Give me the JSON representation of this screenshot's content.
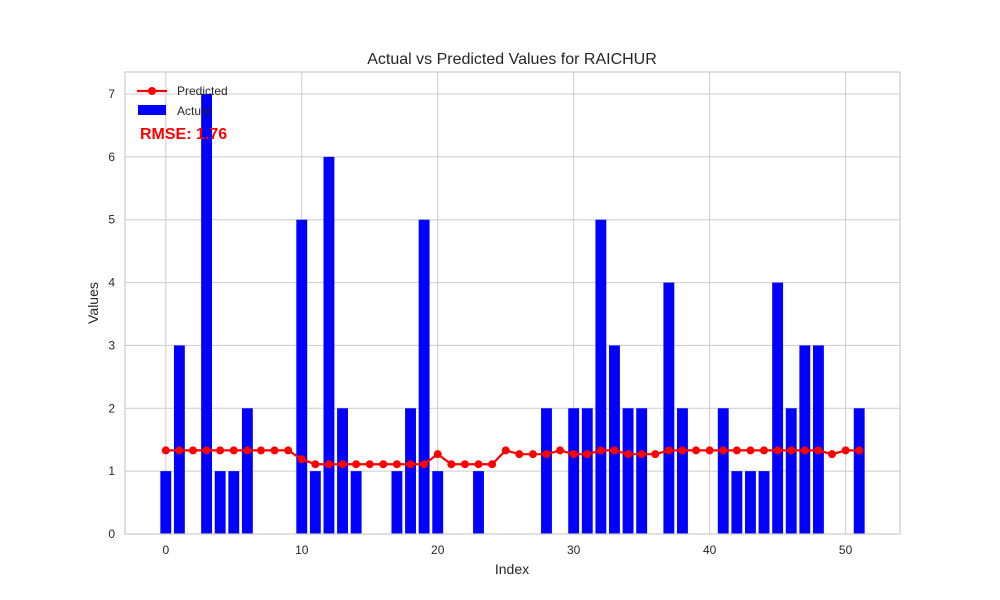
{
  "chart_data": {
    "type": "bar",
    "title": "Actual vs Predicted Values for RAICHUR",
    "xlabel": "Index",
    "ylabel": "Values",
    "xlim": [
      -3,
      54
    ],
    "ylim": [
      0,
      7.35
    ],
    "xticks": [
      0,
      10,
      20,
      30,
      40,
      50
    ],
    "yticks": [
      0,
      1,
      2,
      3,
      4,
      5,
      6,
      7
    ],
    "grid": true,
    "legend_position": "top-left",
    "annotation": "RMSE: 1.76",
    "series": [
      {
        "name": "Actual",
        "kind": "bar",
        "color": "#0000ff",
        "x": [
          0,
          1,
          2,
          3,
          4,
          5,
          6,
          7,
          8,
          9,
          10,
          11,
          12,
          13,
          14,
          15,
          16,
          17,
          18,
          19,
          20,
          21,
          22,
          23,
          24,
          25,
          26,
          27,
          28,
          29,
          30,
          31,
          32,
          33,
          34,
          35,
          36,
          37,
          38,
          39,
          40,
          41,
          42,
          43,
          44,
          45,
          46,
          47,
          48,
          49,
          50,
          51
        ],
        "values": [
          1,
          3,
          0,
          7,
          1,
          1,
          2,
          0,
          0,
          0,
          5,
          1,
          6,
          2,
          1,
          0,
          0,
          1,
          2,
          5,
          1,
          0,
          0,
          1,
          0,
          0,
          0,
          0,
          2,
          0,
          2,
          2,
          5,
          3,
          2,
          2,
          0,
          4,
          2,
          0,
          0,
          2,
          1,
          1,
          1,
          4,
          2,
          3,
          3,
          0,
          0,
          2
        ]
      },
      {
        "name": "Predicted",
        "kind": "line",
        "color": "#ff0000",
        "x": [
          0,
          1,
          2,
          3,
          4,
          5,
          6,
          7,
          8,
          9,
          10,
          11,
          12,
          13,
          14,
          15,
          16,
          17,
          18,
          19,
          20,
          21,
          22,
          23,
          24,
          25,
          26,
          27,
          28,
          29,
          30,
          31,
          32,
          33,
          34,
          35,
          36,
          37,
          38,
          39,
          40,
          41,
          42,
          43,
          44,
          45,
          46,
          47,
          48,
          49,
          50,
          51
        ],
        "values": [
          1.33,
          1.33,
          1.33,
          1.33,
          1.33,
          1.33,
          1.33,
          1.33,
          1.33,
          1.33,
          1.19,
          1.11,
          1.11,
          1.11,
          1.11,
          1.11,
          1.11,
          1.11,
          1.11,
          1.11,
          1.27,
          1.11,
          1.11,
          1.11,
          1.11,
          1.33,
          1.27,
          1.27,
          1.27,
          1.33,
          1.27,
          1.27,
          1.33,
          1.33,
          1.27,
          1.27,
          1.27,
          1.33,
          1.33,
          1.33,
          1.33,
          1.33,
          1.33,
          1.33,
          1.33,
          1.33,
          1.33,
          1.33,
          1.33,
          1.27,
          1.33,
          1.33
        ]
      }
    ]
  }
}
